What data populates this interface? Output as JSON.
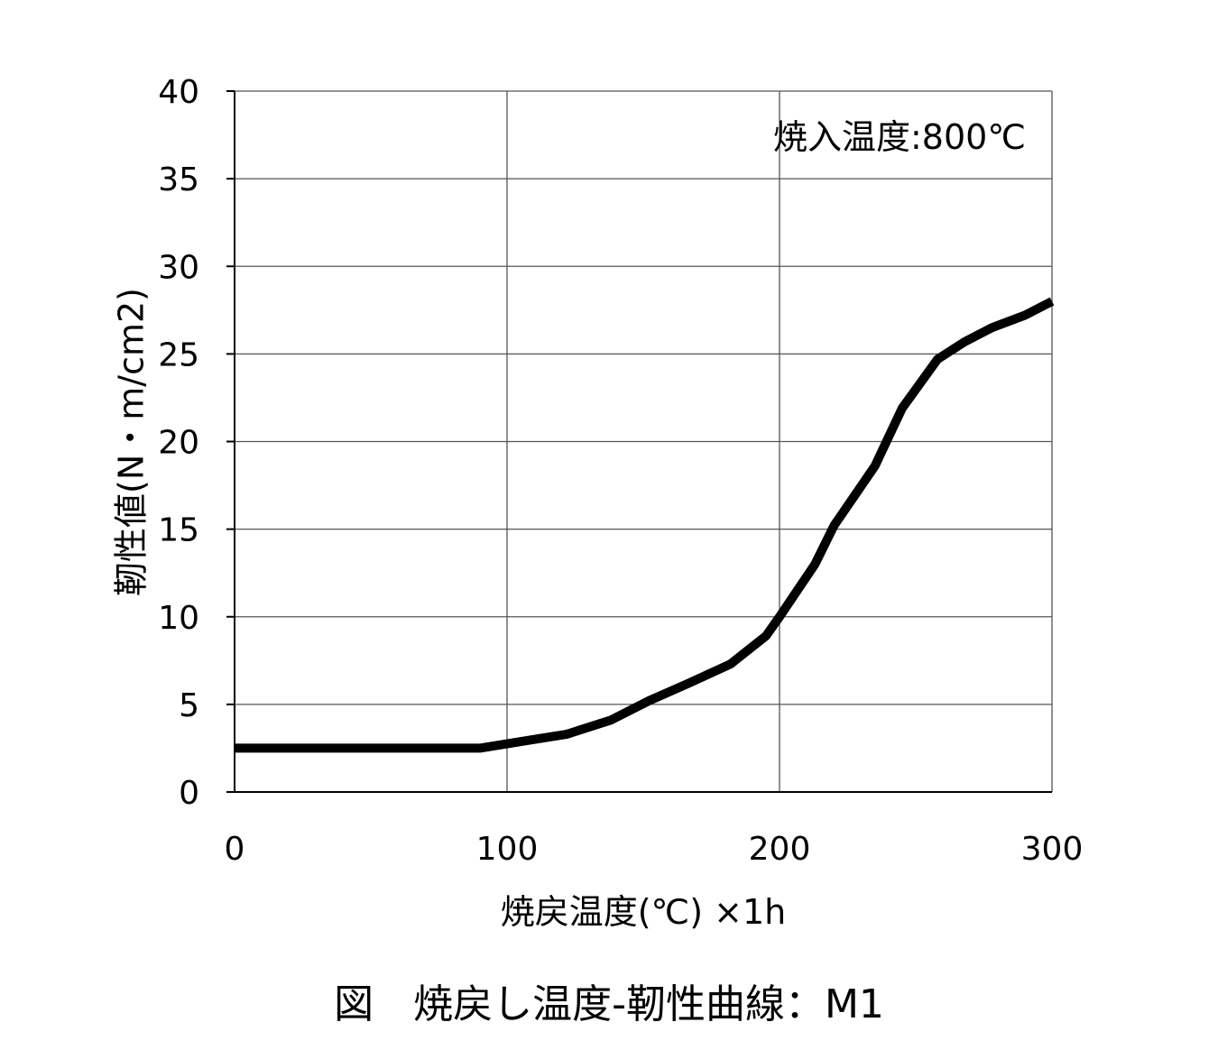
{
  "chart_data": {
    "type": "line",
    "title": "",
    "caption": "図　焼戻し温度-靭性曲線：M1",
    "annotation": "焼入温度:800℃",
    "xlabel": "焼戻温度(℃) ×1h",
    "ylabel": "靭性値(N・m/cm2)",
    "xlim": [
      0,
      300
    ],
    "ylim": [
      0,
      40
    ],
    "xticks": [
      "0",
      "100",
      "200",
      "300"
    ],
    "yticks": [
      "0",
      "5",
      "10",
      "15",
      "20",
      "25",
      "30",
      "35",
      "40"
    ],
    "grid": true,
    "legend": "none",
    "series": [
      {
        "color": "#000000",
        "x": [
          0,
          30,
          60,
          90,
          110,
          122,
          138,
          152,
          168,
          182,
          195,
          200,
          213,
          220,
          235,
          245,
          258,
          268,
          278,
          290,
          300
        ],
        "y": [
          2.5,
          2.5,
          2.5,
          2.5,
          3.0,
          3.3,
          4.1,
          5.2,
          6.3,
          7.3,
          8.9,
          10.0,
          13.0,
          15.2,
          18.6,
          21.9,
          24.7,
          25.7,
          26.5,
          27.2,
          28.0
        ]
      }
    ]
  }
}
